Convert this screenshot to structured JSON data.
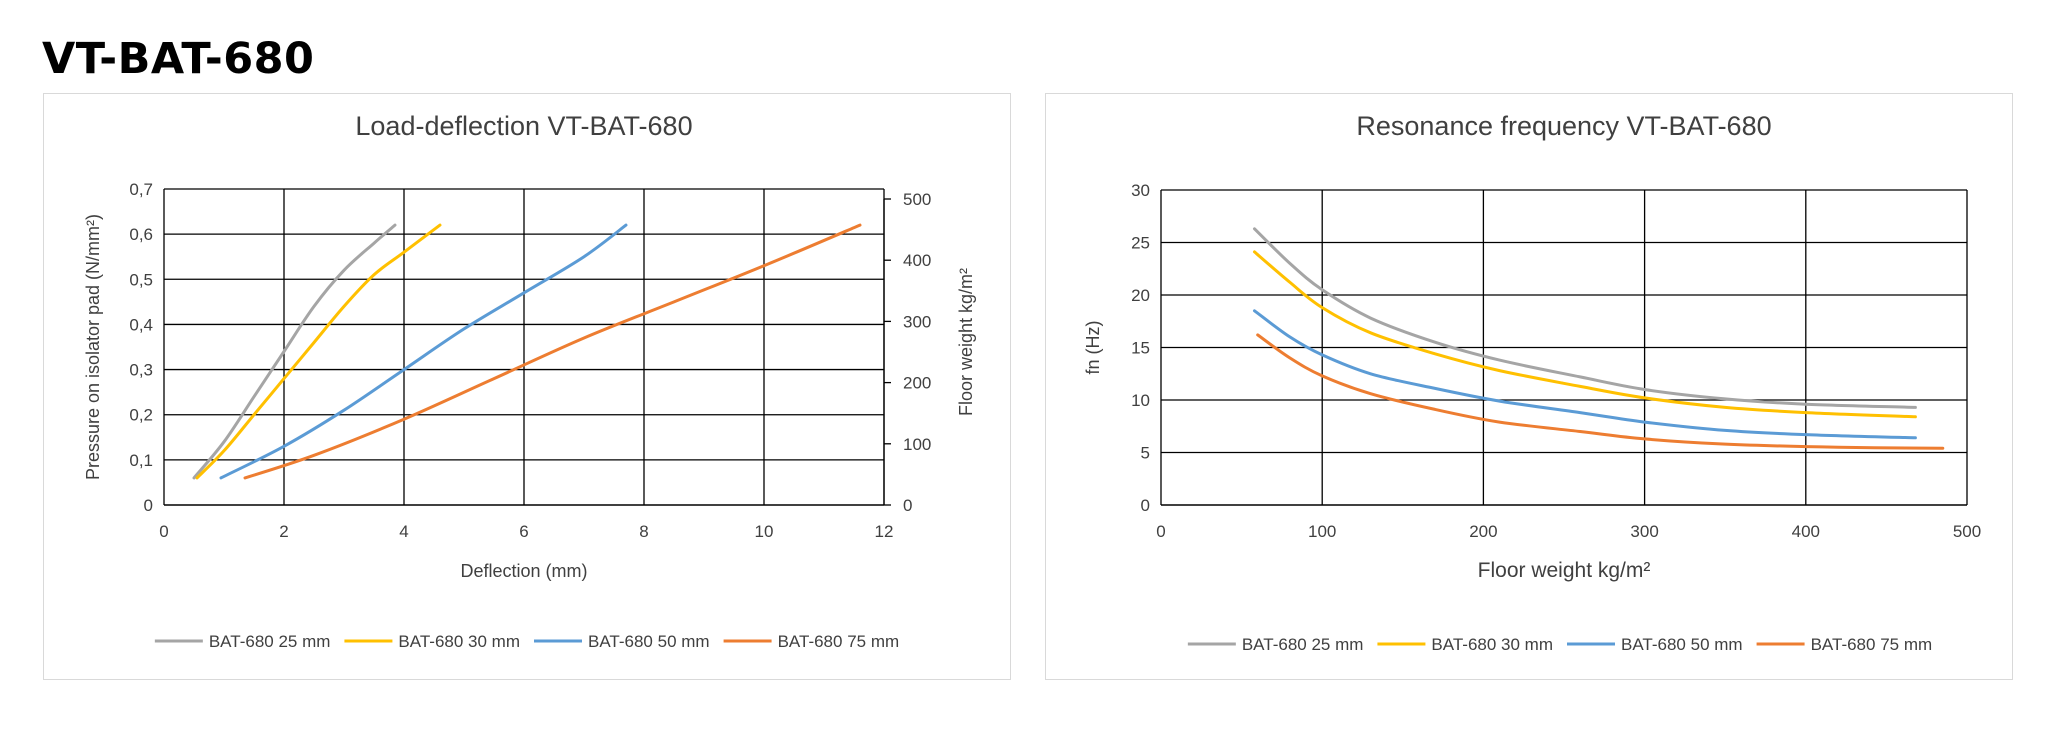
{
  "page": {
    "title": "VT-BAT-680"
  },
  "chart_data": [
    {
      "type": "line",
      "title": "Load-deflection VT-BAT-680",
      "xlabel": "Deflection (mm)",
      "ylabel": "Pressure on isolator pad (N/mm²)",
      "y2label": "Floor weight kg/m²",
      "xlim": [
        0,
        12
      ],
      "ylim": [
        0,
        0.7
      ],
      "y2lim": [
        0,
        500
      ],
      "xticks": [
        "0",
        "2",
        "4",
        "6",
        "8",
        "10",
        "12"
      ],
      "yticks": [
        "0",
        "0,1",
        "0,2",
        "0,3",
        "0,4",
        "0,5",
        "0,6",
        "0,7"
      ],
      "y2ticks": [
        "0",
        "100",
        "200",
        "300",
        "400",
        "500"
      ],
      "grid": true,
      "legend": "bottom",
      "series": [
        {
          "name": "BAT-680 25 mm",
          "color": "#a5a5a5",
          "points": [
            [
              0.5,
              0.06
            ],
            [
              1.0,
              0.14
            ],
            [
              1.5,
              0.24
            ],
            [
              2.0,
              0.34
            ],
            [
              2.5,
              0.44
            ],
            [
              3.0,
              0.52
            ],
            [
              3.5,
              0.58
            ],
            [
              3.85,
              0.62
            ]
          ]
        },
        {
          "name": "BAT-680 30 mm",
          "color": "#ffc000",
          "points": [
            [
              0.55,
              0.06
            ],
            [
              1.0,
              0.12
            ],
            [
              1.5,
              0.2
            ],
            [
              2.0,
              0.28
            ],
            [
              2.5,
              0.36
            ],
            [
              3.0,
              0.44
            ],
            [
              3.5,
              0.51
            ],
            [
              4.0,
              0.56
            ],
            [
              4.6,
              0.62
            ]
          ]
        },
        {
          "name": "BAT-680 50 mm",
          "color": "#5b9bd5",
          "points": [
            [
              0.95,
              0.06
            ],
            [
              2.0,
              0.13
            ],
            [
              3.0,
              0.21
            ],
            [
              4.0,
              0.3
            ],
            [
              5.0,
              0.39
            ],
            [
              6.0,
              0.47
            ],
            [
              7.0,
              0.55
            ],
            [
              7.7,
              0.62
            ]
          ]
        },
        {
          "name": "BAT-680 75 mm",
          "color": "#ed7d31",
          "points": [
            [
              1.35,
              0.06
            ],
            [
              2.5,
              0.11
            ],
            [
              4.0,
              0.19
            ],
            [
              5.5,
              0.28
            ],
            [
              7.0,
              0.37
            ],
            [
              8.5,
              0.45
            ],
            [
              10.0,
              0.53
            ],
            [
              11.6,
              0.62
            ]
          ]
        }
      ]
    },
    {
      "type": "line",
      "title": "Resonance frequency VT-BAT-680",
      "xlabel": "Floor weight kg/m²",
      "ylabel": "fn (Hz)",
      "xlim": [
        0,
        500
      ],
      "ylim": [
        0,
        30
      ],
      "xticks": [
        "0",
        "100",
        "200",
        "300",
        "400",
        "500"
      ],
      "yticks": [
        "0",
        "5",
        "10",
        "15",
        "20",
        "25",
        "30"
      ],
      "grid": true,
      "legend": "bottom",
      "series": [
        {
          "name": "BAT-680 25 mm",
          "color": "#a5a5a5",
          "points": [
            [
              58,
              26.3
            ],
            [
              80,
              23.0
            ],
            [
              100,
              20.5
            ],
            [
              130,
              17.8
            ],
            [
              170,
              15.5
            ],
            [
              210,
              13.8
            ],
            [
              260,
              12.2
            ],
            [
              300,
              11.0
            ],
            [
              350,
              10.1
            ],
            [
              400,
              9.6
            ],
            [
              468,
              9.3
            ]
          ]
        },
        {
          "name": "BAT-680 30 mm",
          "color": "#ffc000",
          "points": [
            [
              58,
              24.1
            ],
            [
              80,
              21.2
            ],
            [
              100,
              18.8
            ],
            [
              130,
              16.4
            ],
            [
              170,
              14.4
            ],
            [
              210,
              12.8
            ],
            [
              260,
              11.3
            ],
            [
              300,
              10.2
            ],
            [
              350,
              9.3
            ],
            [
              400,
              8.8
            ],
            [
              468,
              8.4
            ]
          ]
        },
        {
          "name": "BAT-680 50 mm",
          "color": "#5b9bd5",
          "points": [
            [
              58,
              18.5
            ],
            [
              80,
              16.0
            ],
            [
              100,
              14.3
            ],
            [
              130,
              12.5
            ],
            [
              170,
              11.1
            ],
            [
              210,
              9.9
            ],
            [
              260,
              8.8
            ],
            [
              300,
              7.9
            ],
            [
              350,
              7.1
            ],
            [
              400,
              6.7
            ],
            [
              468,
              6.4
            ]
          ]
        },
        {
          "name": "BAT-680 75 mm",
          "color": "#ed7d31",
          "points": [
            [
              60,
              16.2
            ],
            [
              80,
              14.0
            ],
            [
              100,
              12.3
            ],
            [
              130,
              10.6
            ],
            [
              170,
              9.1
            ],
            [
              210,
              7.9
            ],
            [
              260,
              7.0
            ],
            [
              300,
              6.3
            ],
            [
              350,
              5.8
            ],
            [
              420,
              5.5
            ],
            [
              485,
              5.4
            ]
          ]
        }
      ]
    }
  ]
}
